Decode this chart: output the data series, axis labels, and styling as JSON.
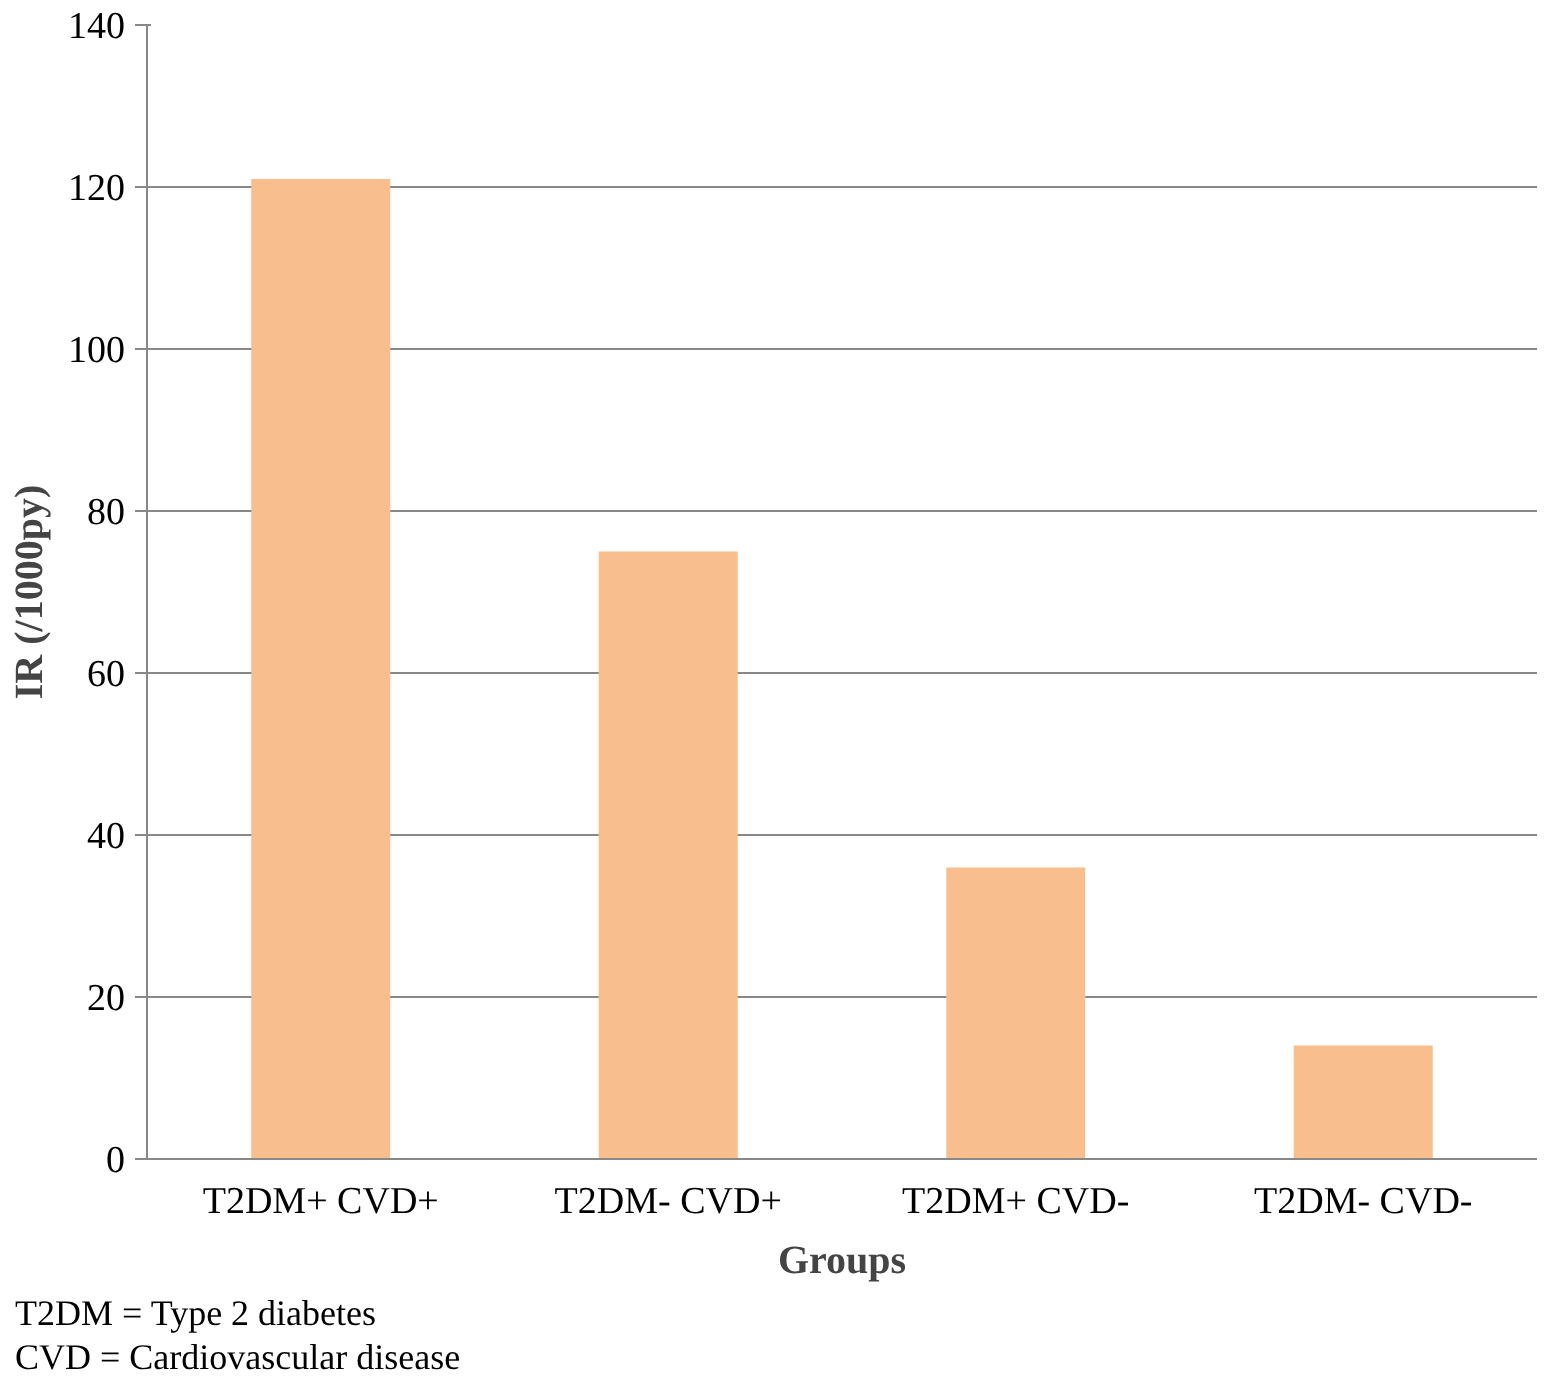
{
  "chart_data": {
    "type": "bar",
    "xlabel": "Groups",
    "ylabel": "IR (/1000py)",
    "categories": [
      "T2DM+ CVD+",
      "T2DM- CVD+",
      "T2DM+ CVD-",
      "T2DM- CVD-"
    ],
    "values": [
      121,
      75,
      36,
      14
    ],
    "color": "#f9be8e",
    "ylim": [
      0,
      140
    ],
    "yticks": [
      0,
      20,
      40,
      60,
      80,
      100,
      120,
      140
    ],
    "grid": "y",
    "annotations": [
      "T2DM = Type 2 diabetes",
      "CVD = Cardiovascular disease"
    ]
  }
}
